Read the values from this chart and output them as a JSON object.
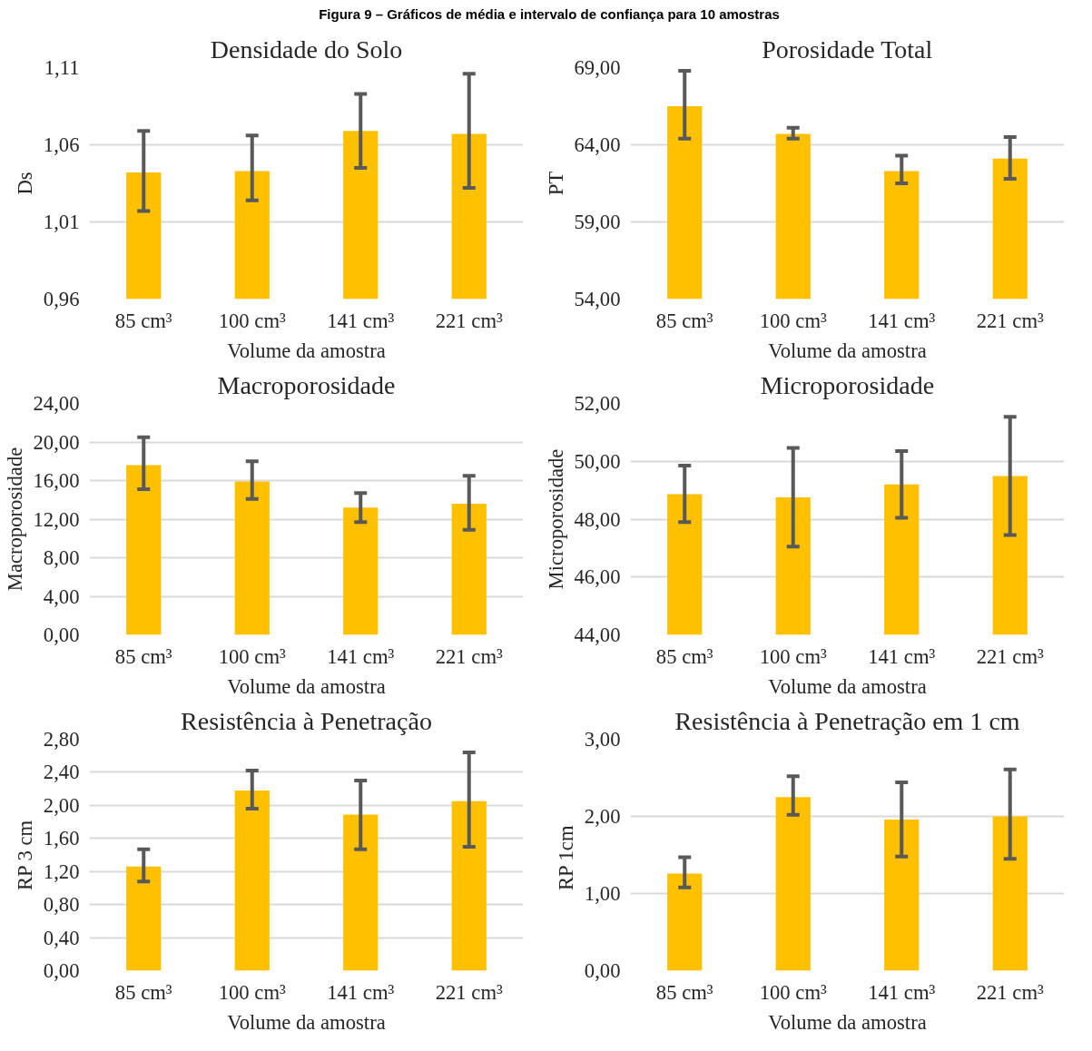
{
  "chart_data": [
    {
      "type": "bar",
      "title": "Densidade do Solo",
      "xlabel": "Volume da amostra",
      "ylabel": "Ds",
      "annotations": [
        "Figura 9 – Gráficos de média e intervalo de confiança para 10 amostras"
      ],
      "categories": [
        "85 cm³",
        "100 cm³",
        "141 cm³",
        "221 cm³"
      ],
      "series": [
        {
          "color": "#ffc000",
          "values": [
            1.042,
            1.043,
            1.069,
            1.067
          ],
          "errors": [
            [
              1.017,
              1.069
            ],
            [
              1.024,
              1.066
            ],
            [
              1.045,
              1.093
            ],
            [
              1.032,
              1.106
            ]
          ]
        }
      ],
      "ylim": [
        0.96,
        1.11
      ],
      "yticks": [
        {
          "value": 0.96,
          "label": "0,96"
        },
        {
          "value": 1.01,
          "label": "1,01"
        },
        {
          "value": 1.06,
          "label": "1,06"
        },
        {
          "value": 1.11,
          "label": "1,11"
        }
      ],
      "grid": "y"
    },
    {
      "type": "bar",
      "title": "Porosidade Total",
      "xlabel": "Volume da amostra",
      "ylabel": "PT",
      "categories": [
        "85 cm³",
        "100 cm³",
        "141 cm³",
        "221 cm³"
      ],
      "series": [
        {
          "color": "#ffc000",
          "values": [
            66.5,
            64.7,
            62.3,
            63.1
          ],
          "errors": [
            [
              64.4,
              68.8
            ],
            [
              64.4,
              65.1
            ],
            [
              61.5,
              63.3
            ],
            [
              61.8,
              64.5
            ]
          ]
        }
      ],
      "ylim": [
        54,
        69
      ],
      "yticks": [
        {
          "value": 54,
          "label": "54,00"
        },
        {
          "value": 59,
          "label": "59,00"
        },
        {
          "value": 64,
          "label": "64,00"
        },
        {
          "value": 69,
          "label": "69,00"
        }
      ],
      "grid": "y"
    },
    {
      "type": "bar",
      "title": "Macroporosidade",
      "xlabel": "Volume da amostra",
      "ylabel": "Macroporosidade",
      "categories": [
        "85 cm³",
        "100 cm³",
        "141 cm³",
        "221 cm³"
      ],
      "series": [
        {
          "color": "#ffc000",
          "values": [
            17.6,
            15.9,
            13.2,
            13.6
          ],
          "errors": [
            [
              15.1,
              20.5
            ],
            [
              14.1,
              18.0
            ],
            [
              11.7,
              14.7
            ],
            [
              10.9,
              16.5
            ]
          ]
        }
      ],
      "ylim": [
        0,
        24
      ],
      "yticks": [
        {
          "value": 0,
          "label": "0,00"
        },
        {
          "value": 4,
          "label": "4,00"
        },
        {
          "value": 8,
          "label": "8,00"
        },
        {
          "value": 12,
          "label": "12,00"
        },
        {
          "value": 16,
          "label": "16,00"
        },
        {
          "value": 20,
          "label": "20,00"
        },
        {
          "value": 24,
          "label": "24,00"
        }
      ],
      "grid": "y"
    },
    {
      "type": "bar",
      "title": "Microporosidade",
      "xlabel": "Volume da amostra",
      "ylabel": "Microporosidade",
      "categories": [
        "85 cm³",
        "100 cm³",
        "141 cm³",
        "221 cm³"
      ],
      "series": [
        {
          "color": "#ffc000",
          "values": [
            48.86,
            48.75,
            49.2,
            49.49
          ],
          "errors": [
            [
              47.9,
              49.85
            ],
            [
              47.05,
              50.46
            ],
            [
              48.05,
              50.35
            ],
            [
              47.45,
              51.54
            ]
          ]
        }
      ],
      "ylim": [
        44,
        52
      ],
      "yticks": [
        {
          "value": 44,
          "label": "44,00"
        },
        {
          "value": 46,
          "label": "46,00"
        },
        {
          "value": 48,
          "label": "48,00"
        },
        {
          "value": 50,
          "label": "50,00"
        },
        {
          "value": 52,
          "label": "52,00"
        }
      ],
      "grid": "y"
    },
    {
      "type": "bar",
      "title": "Resistência à Penetração",
      "xlabel": "Volume da amostra",
      "ylabel": "RP 3 cm",
      "categories": [
        "85 cm³",
        "100 cm³",
        "141 cm³",
        "221 cm³"
      ],
      "series": [
        {
          "color": "#ffc000",
          "values": [
            1.26,
            2.18,
            1.89,
            2.05
          ],
          "errors": [
            [
              1.08,
              1.47
            ],
            [
              1.96,
              2.42
            ],
            [
              1.47,
              2.3
            ],
            [
              1.5,
              2.64
            ]
          ]
        }
      ],
      "ylim": [
        0,
        2.8
      ],
      "yticks": [
        {
          "value": 0,
          "label": "0,00"
        },
        {
          "value": 0.4,
          "label": "0,40"
        },
        {
          "value": 0.8,
          "label": "0,80"
        },
        {
          "value": 1.2,
          "label": "1,20"
        },
        {
          "value": 1.6,
          "label": "1,60"
        },
        {
          "value": 2.0,
          "label": "2,00"
        },
        {
          "value": 2.4,
          "label": "2,40"
        },
        {
          "value": 2.8,
          "label": "2,80"
        }
      ],
      "grid": "y"
    },
    {
      "type": "bar",
      "title": "Resistência à Penetração em 1 cm",
      "xlabel": "Volume da amostra",
      "ylabel": "RP  1cm",
      "categories": [
        "85 cm³",
        "100 cm³",
        "141 cm³",
        "221 cm³"
      ],
      "series": [
        {
          "color": "#ffc000",
          "values": [
            1.26,
            2.25,
            1.96,
            2.0
          ],
          "errors": [
            [
              1.08,
              1.47
            ],
            [
              2.02,
              2.52
            ],
            [
              1.48,
              2.44
            ],
            [
              1.45,
              2.61
            ]
          ]
        }
      ],
      "ylim": [
        0,
        3
      ],
      "yticks": [
        {
          "value": 0,
          "label": "0,00"
        },
        {
          "value": 1,
          "label": "1,00"
        },
        {
          "value": 2,
          "label": "2,00"
        },
        {
          "value": 3,
          "label": "3,00"
        }
      ],
      "grid": "y"
    }
  ]
}
